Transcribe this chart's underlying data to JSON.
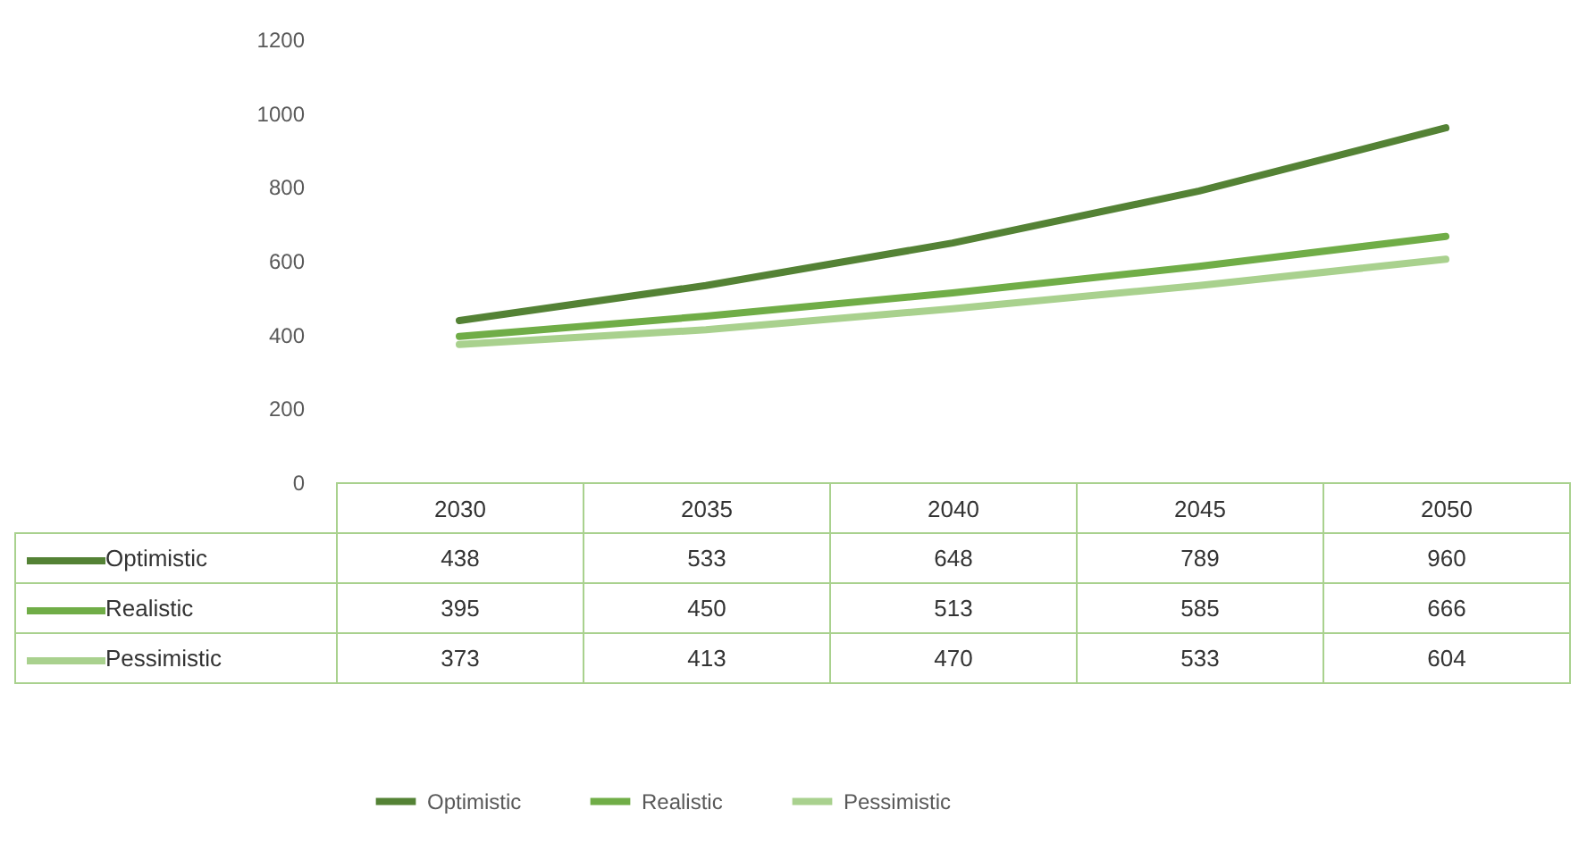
{
  "chart_data": {
    "type": "line",
    "categories": [
      "2030",
      "2035",
      "2040",
      "2045",
      "2050"
    ],
    "series": [
      {
        "name": "Optimistic",
        "color": "#548235",
        "values": [
          438,
          533,
          648,
          789,
          960
        ]
      },
      {
        "name": "Realistic",
        "color": "#70ad47",
        "values": [
          395,
          450,
          513,
          585,
          666
        ]
      },
      {
        "name": "Pessimistic",
        "color": "#a9d18e",
        "values": [
          373,
          413,
          470,
          533,
          604
        ]
      }
    ],
    "ylim": [
      0,
      1200
    ],
    "yticks": [
      0,
      200,
      400,
      600,
      800,
      1000,
      1200
    ],
    "data_labels": true,
    "legend": "bottom"
  }
}
